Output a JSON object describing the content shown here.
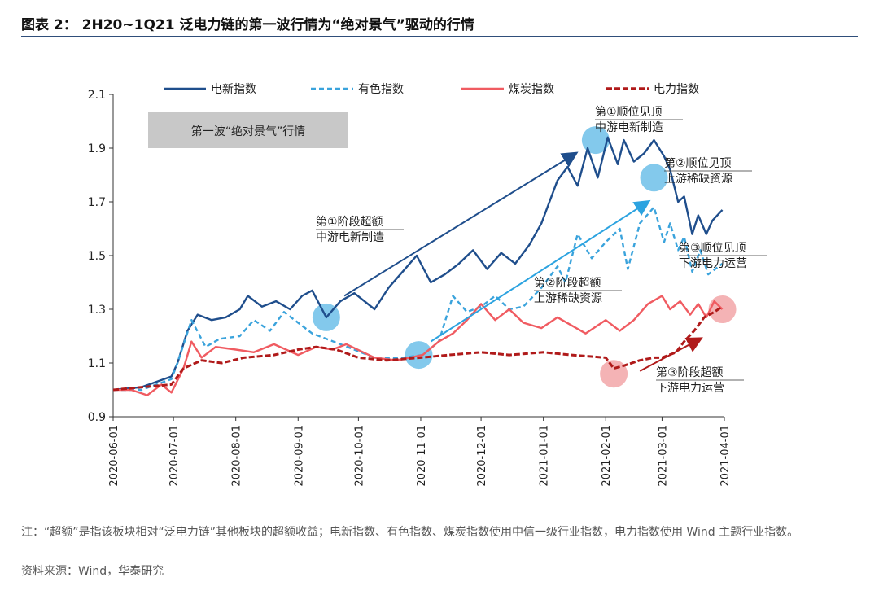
{
  "header": {
    "title": "图表 2：  2H20~1Q21 泛电力链的第一波行情为“绝对景气”驱动的行情"
  },
  "chart_data": {
    "type": "line",
    "ylim": [
      0.9,
      2.1
    ],
    "yticks": [
      "0.9",
      "1.1",
      "1.3",
      "1.5",
      "1.7",
      "1.9",
      "2.1"
    ],
    "xticks": [
      "2020-06-01",
      "2020-07-01",
      "2020-08-01",
      "2020-09-01",
      "2020-10-01",
      "2020-11-01",
      "2020-12-01",
      "2021-01-01",
      "2021-02-01",
      "2021-03-01",
      "2021-04-01"
    ],
    "xlabel": "",
    "ylabel": "",
    "legend_position": "top",
    "series": [
      {
        "name": "电新指数",
        "color": "#1f4e8c",
        "style": "solid",
        "points": [
          [
            "2020-06-01",
            1.0
          ],
          [
            "2020-06-15",
            1.01
          ],
          [
            "2020-06-30",
            1.05
          ],
          [
            "2020-07-03",
            1.1
          ],
          [
            "2020-07-08",
            1.22
          ],
          [
            "2020-07-13",
            1.28
          ],
          [
            "2020-07-20",
            1.26
          ],
          [
            "2020-07-27",
            1.27
          ],
          [
            "2020-08-03",
            1.3
          ],
          [
            "2020-08-07",
            1.35
          ],
          [
            "2020-08-14",
            1.31
          ],
          [
            "2020-08-21",
            1.33
          ],
          [
            "2020-08-28",
            1.3
          ],
          [
            "2020-09-03",
            1.35
          ],
          [
            "2020-09-08",
            1.37
          ],
          [
            "2020-09-15",
            1.27
          ],
          [
            "2020-09-22",
            1.33
          ],
          [
            "2020-09-29",
            1.36
          ],
          [
            "2020-10-09",
            1.3
          ],
          [
            "2020-10-16",
            1.38
          ],
          [
            "2020-10-23",
            1.44
          ],
          [
            "2020-10-30",
            1.5
          ],
          [
            "2020-11-06",
            1.4
          ],
          [
            "2020-11-13",
            1.43
          ],
          [
            "2020-11-20",
            1.47
          ],
          [
            "2020-11-27",
            1.52
          ],
          [
            "2020-12-04",
            1.45
          ],
          [
            "2020-12-11",
            1.51
          ],
          [
            "2020-12-18",
            1.47
          ],
          [
            "2020-12-25",
            1.54
          ],
          [
            "2020-12-31",
            1.62
          ],
          [
            "2021-01-08",
            1.78
          ],
          [
            "2021-01-13",
            1.83
          ],
          [
            "2021-01-18",
            1.76
          ],
          [
            "2021-01-23",
            1.9
          ],
          [
            "2021-01-28",
            1.79
          ],
          [
            "2021-02-02",
            1.94
          ],
          [
            "2021-02-07",
            1.84
          ],
          [
            "2021-02-10",
            1.93
          ],
          [
            "2021-02-15",
            1.85
          ],
          [
            "2021-02-20",
            1.88
          ],
          [
            "2021-02-25",
            1.93
          ],
          [
            "2021-03-02",
            1.87
          ],
          [
            "2021-03-05",
            1.82
          ],
          [
            "2021-03-09",
            1.7
          ],
          [
            "2021-03-12",
            1.72
          ],
          [
            "2021-03-16",
            1.58
          ],
          [
            "2021-03-19",
            1.65
          ],
          [
            "2021-03-23",
            1.58
          ],
          [
            "2021-03-26",
            1.63
          ],
          [
            "2021-03-31",
            1.67
          ]
        ]
      },
      {
        "name": "有色指数",
        "color": "#3aa3dc",
        "style": "dashed",
        "points": [
          [
            "2020-06-01",
            1.0
          ],
          [
            "2020-06-15",
            1.0
          ],
          [
            "2020-06-30",
            1.04
          ],
          [
            "2020-07-03",
            1.1
          ],
          [
            "2020-07-10",
            1.26
          ],
          [
            "2020-07-17",
            1.16
          ],
          [
            "2020-07-24",
            1.19
          ],
          [
            "2020-08-03",
            1.2
          ],
          [
            "2020-08-10",
            1.26
          ],
          [
            "2020-08-18",
            1.22
          ],
          [
            "2020-08-25",
            1.29
          ],
          [
            "2020-09-01",
            1.25
          ],
          [
            "2020-09-08",
            1.21
          ],
          [
            "2020-09-15",
            1.19
          ],
          [
            "2020-09-22",
            1.17
          ],
          [
            "2020-10-09",
            1.12
          ],
          [
            "2020-10-23",
            1.12
          ],
          [
            "2020-11-02",
            1.13
          ],
          [
            "2020-11-10",
            1.18
          ],
          [
            "2020-11-17",
            1.35
          ],
          [
            "2020-11-24",
            1.29
          ],
          [
            "2020-12-01",
            1.31
          ],
          [
            "2020-12-08",
            1.35
          ],
          [
            "2020-12-15",
            1.3
          ],
          [
            "2020-12-22",
            1.31
          ],
          [
            "2020-12-31",
            1.38
          ],
          [
            "2021-01-08",
            1.46
          ],
          [
            "2021-01-12",
            1.4
          ],
          [
            "2021-01-18",
            1.58
          ],
          [
            "2021-01-25",
            1.49
          ],
          [
            "2021-02-01",
            1.55
          ],
          [
            "2021-02-08",
            1.6
          ],
          [
            "2021-02-12",
            1.45
          ],
          [
            "2021-02-18",
            1.62
          ],
          [
            "2021-02-25",
            1.68
          ],
          [
            "2021-03-02",
            1.55
          ],
          [
            "2021-03-05",
            1.62
          ],
          [
            "2021-03-09",
            1.52
          ],
          [
            "2021-03-12",
            1.57
          ],
          [
            "2021-03-16",
            1.44
          ],
          [
            "2021-03-20",
            1.52
          ],
          [
            "2021-03-24",
            1.43
          ],
          [
            "2021-03-31",
            1.47
          ]
        ]
      },
      {
        "name": "煤炭指数",
        "color": "#f05b61",
        "style": "solid",
        "points": [
          [
            "2020-06-01",
            1.0
          ],
          [
            "2020-06-10",
            1.0
          ],
          [
            "2020-06-18",
            0.98
          ],
          [
            "2020-06-25",
            1.02
          ],
          [
            "2020-06-30",
            0.99
          ],
          [
            "2020-07-06",
            1.08
          ],
          [
            "2020-07-10",
            1.18
          ],
          [
            "2020-07-15",
            1.12
          ],
          [
            "2020-07-22",
            1.16
          ],
          [
            "2020-08-01",
            1.15
          ],
          [
            "2020-08-10",
            1.14
          ],
          [
            "2020-08-20",
            1.17
          ],
          [
            "2020-09-01",
            1.13
          ],
          [
            "2020-09-10",
            1.16
          ],
          [
            "2020-09-18",
            1.15
          ],
          [
            "2020-09-25",
            1.17
          ],
          [
            "2020-10-09",
            1.12
          ],
          [
            "2020-10-20",
            1.11
          ],
          [
            "2020-11-02",
            1.13
          ],
          [
            "2020-11-10",
            1.18
          ],
          [
            "2020-11-17",
            1.21
          ],
          [
            "2020-11-24",
            1.26
          ],
          [
            "2020-12-01",
            1.32
          ],
          [
            "2020-12-08",
            1.26
          ],
          [
            "2020-12-15",
            1.3
          ],
          [
            "2020-12-22",
            1.25
          ],
          [
            "2020-12-31",
            1.23
          ],
          [
            "2021-01-08",
            1.27
          ],
          [
            "2021-01-15",
            1.24
          ],
          [
            "2021-01-22",
            1.21
          ],
          [
            "2021-02-01",
            1.26
          ],
          [
            "2021-02-08",
            1.22
          ],
          [
            "2021-02-15",
            1.26
          ],
          [
            "2021-02-22",
            1.32
          ],
          [
            "2021-03-01",
            1.35
          ],
          [
            "2021-03-05",
            1.3
          ],
          [
            "2021-03-10",
            1.33
          ],
          [
            "2021-03-15",
            1.28
          ],
          [
            "2021-03-19",
            1.32
          ],
          [
            "2021-03-23",
            1.27
          ],
          [
            "2021-03-27",
            1.33
          ],
          [
            "2021-03-31",
            1.3
          ]
        ]
      },
      {
        "name": "电力指数",
        "color": "#b01a1a",
        "style": "dashed",
        "points": [
          [
            "2020-06-01",
            1.0
          ],
          [
            "2020-06-15",
            1.01
          ],
          [
            "2020-06-30",
            1.02
          ],
          [
            "2020-07-06",
            1.08
          ],
          [
            "2020-07-15",
            1.11
          ],
          [
            "2020-07-25",
            1.1
          ],
          [
            "2020-08-05",
            1.12
          ],
          [
            "2020-08-20",
            1.13
          ],
          [
            "2020-09-01",
            1.15
          ],
          [
            "2020-09-10",
            1.16
          ],
          [
            "2020-09-20",
            1.15
          ],
          [
            "2020-10-01",
            1.12
          ],
          [
            "2020-10-15",
            1.11
          ],
          [
            "2020-11-01",
            1.12
          ],
          [
            "2020-11-15",
            1.13
          ],
          [
            "2020-12-01",
            1.14
          ],
          [
            "2020-12-15",
            1.13
          ],
          [
            "2021-01-01",
            1.14
          ],
          [
            "2021-01-15",
            1.13
          ],
          [
            "2021-02-01",
            1.12
          ],
          [
            "2021-02-05",
            1.08
          ],
          [
            "2021-02-10",
            1.09
          ],
          [
            "2021-02-18",
            1.11
          ],
          [
            "2021-02-25",
            1.12
          ],
          [
            "2021-03-01",
            1.12
          ],
          [
            "2021-03-08",
            1.14
          ],
          [
            "2021-03-12",
            1.18
          ],
          [
            "2021-03-17",
            1.22
          ],
          [
            "2021-03-22",
            1.27
          ],
          [
            "2021-03-27",
            1.29
          ],
          [
            "2021-03-31",
            1.31
          ]
        ]
      }
    ],
    "title_box": "第一波“绝对景气”行情",
    "annotations": [
      {
        "lines": [
          "第①顺位见顶",
          "中游电新制造"
        ]
      },
      {
        "lines": [
          "第②顺位见顶",
          "上游稀缺资源"
        ]
      },
      {
        "lines": [
          "第③顺位见顶",
          "下游电力运营"
        ]
      },
      {
        "lines": [
          "第①阶段超额",
          "中游电新制造"
        ]
      },
      {
        "lines": [
          "第②阶段超额",
          "上游稀缺资源"
        ]
      },
      {
        "lines": [
          "第③阶段超额",
          "下游电力运营"
        ]
      }
    ]
  },
  "note": "注：“超额”是指该板块相对“泛电力链”其他板块的超额收益；电新指数、有色指数、煤炭指数使用中信一级行业指数，电力指数使用 Wind 主题行业指数。",
  "source": "资料来源：Wind，华泰研究"
}
